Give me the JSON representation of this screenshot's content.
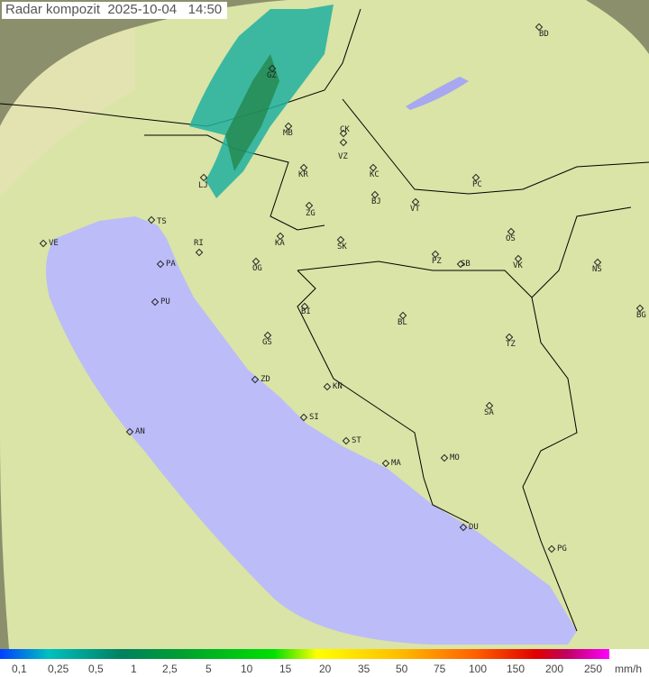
{
  "title": "Radar kompozit  2025-10-04   14:50",
  "colors": {
    "sea": "#bcbcf8",
    "land": "#d8e6a8",
    "outside": "#8a8f6a",
    "border": "#000000"
  },
  "cities": [
    "BD",
    "GZ",
    "MB",
    "CK",
    "VZ",
    "KR",
    "KC",
    "LJ",
    "PC",
    "BJ",
    "VT",
    "ZG",
    "TS",
    "VE",
    "KA",
    "SK",
    "OS",
    "RI",
    "PA",
    "OG",
    "PZ",
    "SB",
    "VK",
    "NS",
    "PU",
    "BI",
    "BG",
    "BL",
    "GS",
    "TZ",
    "ZD",
    "KN",
    "SA",
    "AN",
    "SI",
    "ST",
    "MA",
    "MO",
    "DU",
    "PG"
  ],
  "legend": {
    "labels": [
      "0,1",
      "0,25",
      "0,5",
      "1",
      "2,5",
      "5",
      "10",
      "15",
      "20",
      "35",
      "50",
      "75",
      "100",
      "150",
      "200",
      "250"
    ],
    "unit": "mm/h"
  }
}
